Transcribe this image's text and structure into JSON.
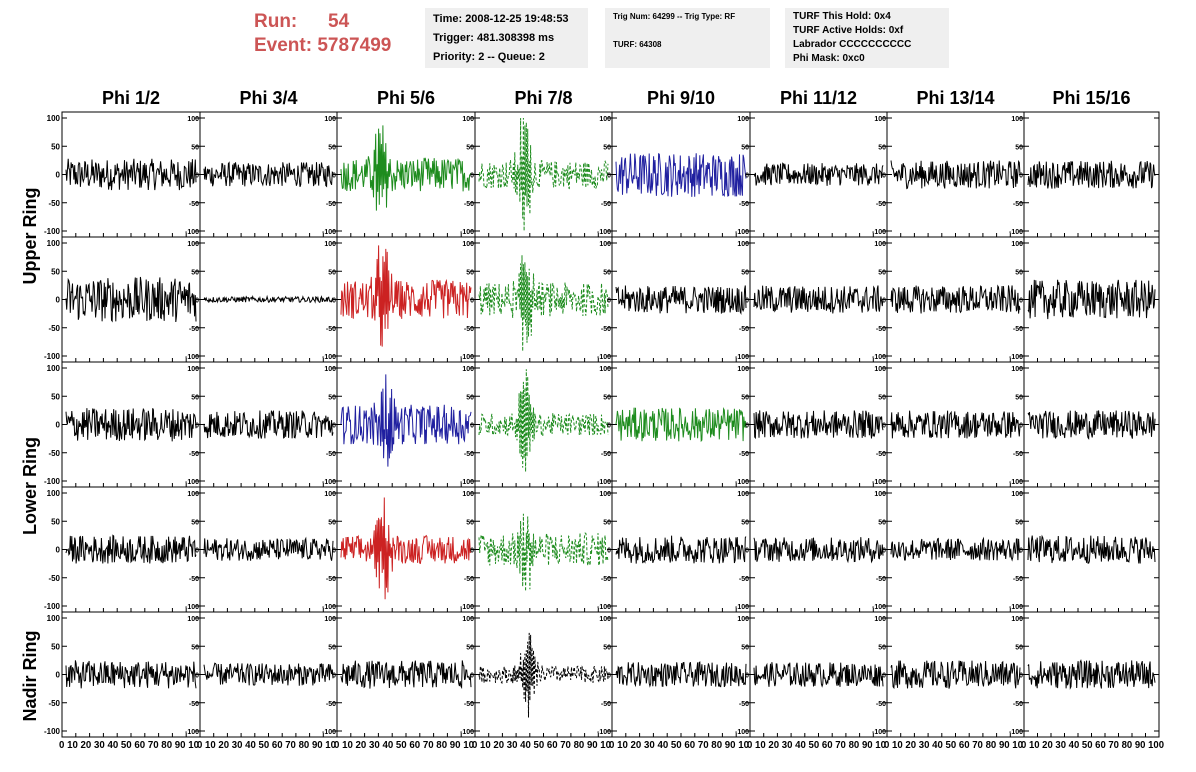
{
  "header": {
    "run_label": "Run:",
    "run_value": "54",
    "event_label": "Event:",
    "event_value": "5787499",
    "time": "Time: 2008-12-25 19:48:53",
    "trigger": "Trigger: 481.308398 ms",
    "priority": "Priority: 2 -- Queue: 2",
    "trig_num": "Trig Num: 64299 -- Trig Type: RF",
    "turf": "TURF: 64308",
    "turf_hold": "TURF This Hold: 0x4",
    "turf_active": "TURF Active Holds: 0xf",
    "labrador": "Labrador CCCCCCCCCC",
    "phi_mask": "Phi Mask: 0xc0"
  },
  "chart_data": {
    "type": "line",
    "columns": [
      "Phi 1/2",
      "Phi 3/4",
      "Phi 5/6",
      "Phi 7/8",
      "Phi 9/10",
      "Phi 11/12",
      "Phi 13/14",
      "Phi 15/16"
    ],
    "row_labels": [
      "Upper Ring",
      "Lower Ring",
      "Nadir Ring"
    ],
    "xlim": [
      0,
      100
    ],
    "ylim": [
      -100,
      100
    ],
    "x_ticks": [
      "0",
      "10",
      "20",
      "30",
      "40",
      "50",
      "60",
      "70",
      "80",
      "90",
      "100"
    ],
    "y_ticks": [
      "100",
      "50",
      "0",
      "-50",
      "-100"
    ],
    "x_tick_text": [
      "0 10 20 30 40 50 60 70 80 90 10",
      "0 10 20 30 40 50 60 70 80 90 10",
      "0 10 20 30 40 50 60 70 80 90 10",
      "0 10 20 30 40 50 60 70 80 90 10",
      "0 10 20 30 40 50 60 70 80 90 10",
      "0 10 20 30 40 50 60 70 80 90 10",
      "0 10 20 30 40 50 60 70 80 90 10",
      "0 10 20 30 40 50 60 70 80 90 100"
    ],
    "colors": {
      "black": "#000000",
      "green": "#1e8c1e",
      "blue": "#2020a0",
      "red": "#cc2222"
    },
    "panels": [
      [
        {
          "color": "black",
          "amp": 28,
          "burst": 0,
          "center": 0
        },
        {
          "color": "black",
          "amp": 22,
          "burst": 0,
          "center": 0
        },
        {
          "color": "green",
          "amp": 30,
          "burst": 50,
          "center": 30
        },
        {
          "color": "green",
          "amp": 25,
          "burst": 70,
          "center": 35,
          "dashed": true
        },
        {
          "color": "blue",
          "amp": 40,
          "burst": 0,
          "center": 0
        },
        {
          "color": "black",
          "amp": 20,
          "burst": 0,
          "center": 0
        },
        {
          "color": "black",
          "amp": 25,
          "burst": 0,
          "center": 0
        },
        {
          "color": "black",
          "amp": 25,
          "burst": 0,
          "center": 0
        }
      ],
      [
        {
          "color": "black",
          "amp": 40,
          "burst": 0,
          "center": 0
        },
        {
          "color": "black",
          "amp": 5,
          "burst": 0,
          "center": 0
        },
        {
          "color": "red",
          "amp": 35,
          "burst": 50,
          "center": 32
        },
        {
          "color": "green",
          "amp": 30,
          "burst": 60,
          "center": 36,
          "dashed": true
        },
        {
          "color": "black",
          "amp": 25,
          "burst": 0,
          "center": 0
        },
        {
          "color": "black",
          "amp": 25,
          "burst": 0,
          "center": 0
        },
        {
          "color": "black",
          "amp": 25,
          "burst": 0,
          "center": 0
        },
        {
          "color": "black",
          "amp": 35,
          "burst": 0,
          "center": 0
        }
      ],
      [
        {
          "color": "black",
          "amp": 30,
          "burst": 0,
          "center": 0
        },
        {
          "color": "black",
          "amp": 25,
          "burst": 0,
          "center": 0
        },
        {
          "color": "blue",
          "amp": 35,
          "burst": 40,
          "center": 35
        },
        {
          "color": "green",
          "amp": 20,
          "burst": 60,
          "center": 36,
          "dashed": true
        },
        {
          "color": "green",
          "amp": 30,
          "burst": 0,
          "center": 0
        },
        {
          "color": "black",
          "amp": 25,
          "burst": 0,
          "center": 0
        },
        {
          "color": "black",
          "amp": 25,
          "burst": 0,
          "center": 0
        },
        {
          "color": "black",
          "amp": 25,
          "burst": 0,
          "center": 0
        }
      ],
      [
        {
          "color": "black",
          "amp": 25,
          "burst": 0,
          "center": 0
        },
        {
          "color": "black",
          "amp": 20,
          "burst": 0,
          "center": 0
        },
        {
          "color": "red",
          "amp": 25,
          "burst": 55,
          "center": 33
        },
        {
          "color": "green",
          "amp": 30,
          "burst": 40,
          "center": 36,
          "dashed": true
        },
        {
          "color": "black",
          "amp": 25,
          "burst": 0,
          "center": 0
        },
        {
          "color": "black",
          "amp": 22,
          "burst": 0,
          "center": 0
        },
        {
          "color": "black",
          "amp": 20,
          "burst": 0,
          "center": 0
        },
        {
          "color": "black",
          "amp": 25,
          "burst": 0,
          "center": 0
        }
      ],
      [
        {
          "color": "black",
          "amp": 25,
          "burst": 0,
          "center": 0
        },
        {
          "color": "black",
          "amp": 20,
          "burst": 0,
          "center": 0
        },
        {
          "color": "black",
          "amp": 25,
          "burst": 0,
          "center": 0
        },
        {
          "color": "black",
          "amp": 15,
          "burst": 50,
          "center": 38,
          "dashed": true
        },
        {
          "color": "black",
          "amp": 22,
          "burst": 0,
          "center": 0
        },
        {
          "color": "black",
          "amp": 22,
          "burst": 0,
          "center": 0
        },
        {
          "color": "black",
          "amp": 25,
          "burst": 0,
          "center": 0
        },
        {
          "color": "black",
          "amp": 25,
          "burst": 0,
          "center": 0
        }
      ]
    ]
  }
}
